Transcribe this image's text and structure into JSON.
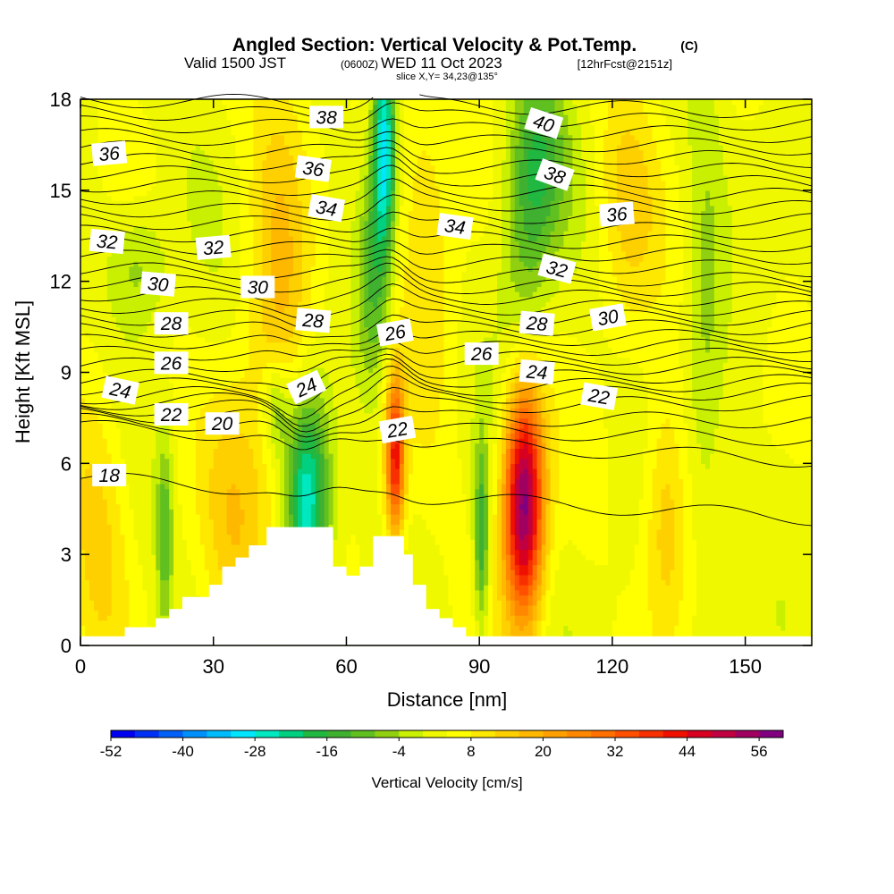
{
  "title": "Angled Section: Vertical Velocity & Pot.Temp.",
  "title_tag": "(C)",
  "subtitle_pre": "Valid 1500 JST",
  "subtitle_utc": "(0600Z)",
  "subtitle_date": "WED 11 Oct 2023",
  "subtitle_fcst": "[12hrFcst@2151z]",
  "slice_info": "slice X,Y= 34,23@135°",
  "colorbar": {
    "title": "Vertical Velocity [cm/s]",
    "tick_labels": [
      "-52",
      "-40",
      "-28",
      "-16",
      "-4",
      "8",
      "20",
      "32",
      "44",
      "56"
    ],
    "min": -52,
    "max": 56,
    "step": 4,
    "colors": [
      "#0000f0",
      "#0030f5",
      "#0060f8",
      "#0090fb",
      "#00bcfd",
      "#00e6ff",
      "#00e8c0",
      "#00d080",
      "#20b840",
      "#40b030",
      "#60c020",
      "#90d010",
      "#c8f000",
      "#f0f800",
      "#ffff00",
      "#ffe800",
      "#ffd000",
      "#ffb800",
      "#ffa000",
      "#ff8800",
      "#ff7000",
      "#ff5000",
      "#f83000",
      "#f01000",
      "#d80020",
      "#c00040",
      "#a00060",
      "#800080"
    ]
  },
  "chart_data": {
    "type": "heatmap",
    "title": "Angled Section: Vertical Velocity & Pot.Temp.",
    "xlabel": "Distance [nm]",
    "ylabel": "Height [Kft MSL]",
    "xlim": [
      0,
      165
    ],
    "ylim": [
      0,
      18
    ],
    "x_ticks": [
      0,
      30,
      60,
      90,
      120,
      150
    ],
    "y_ticks": [
      0,
      3,
      6,
      9,
      12,
      15,
      18
    ],
    "fill_variable": "Vertical Velocity [cm/s]",
    "contour_variable": "Potential Temperature [C]",
    "updrafts": [
      {
        "x": 100,
        "y": 4.7,
        "peak": 56,
        "sx": 3.2,
        "sy": 2.7
      },
      {
        "x": 71,
        "y": 6.2,
        "peak": 38,
        "sx": 1.5,
        "sy": 1.9
      },
      {
        "x": 45,
        "y": 11.5,
        "peak": 12,
        "sx": 5,
        "sy": 6
      },
      {
        "x": 132,
        "y": 4.2,
        "peak": 12,
        "sx": 3.5,
        "sy": 3
      },
      {
        "x": 123,
        "y": 14.5,
        "peak": 10,
        "sx": 5,
        "sy": 3
      },
      {
        "x": 4,
        "y": 4.5,
        "peak": 10,
        "sx": 5,
        "sy": 3.5
      },
      {
        "x": 35,
        "y": 4,
        "peak": 12,
        "sx": 5,
        "sy": 3
      },
      {
        "x": 78,
        "y": 14,
        "peak": 8,
        "sx": 5,
        "sy": 5
      }
    ],
    "downdrafts": [
      {
        "x": 51,
        "y": 4.8,
        "peak": -32,
        "sx": 3.5,
        "sy": 2.5
      },
      {
        "x": 44,
        "y": 7.8,
        "peak": -14,
        "sx": 2.2,
        "sy": 1.2
      },
      {
        "x": 68.5,
        "y": 16.5,
        "peak": -34,
        "sx": 1.8,
        "sy": 2.5
      },
      {
        "x": 66,
        "y": 12,
        "peak": -14,
        "sx": 2.5,
        "sy": 2.5
      },
      {
        "x": 103,
        "y": 16,
        "peak": -18,
        "sx": 4.5,
        "sy": 2.2
      },
      {
        "x": 90.5,
        "y": 3.5,
        "peak": -20,
        "sx": 1.2,
        "sy": 2.2
      },
      {
        "x": 19,
        "y": 3.8,
        "peak": -14,
        "sx": 1.3,
        "sy": 2.2
      },
      {
        "x": 100,
        "y": 12.5,
        "peak": -10,
        "sx": 4,
        "sy": 2.5
      },
      {
        "x": 13,
        "y": 12.5,
        "peak": -10,
        "sx": 5,
        "sy": 1.5
      },
      {
        "x": 141,
        "y": 11.5,
        "peak": -7,
        "sx": 3,
        "sy": 6
      }
    ],
    "terrain": {
      "x": [
        0,
        10,
        10,
        17,
        17,
        20,
        20,
        23,
        23,
        29,
        29,
        32,
        32,
        35,
        35,
        38,
        38,
        42,
        42,
        57,
        57,
        60,
        60,
        63,
        63,
        66,
        66,
        73,
        73,
        75,
        75,
        78,
        78,
        81,
        81,
        84,
        84,
        87,
        87,
        90,
        90,
        165
      ],
      "height": [
        0.3,
        0.3,
        0.6,
        0.6,
        0.9,
        0.9,
        1.2,
        1.2,
        1.6,
        1.6,
        2.0,
        2.0,
        2.6,
        2.6,
        2.9,
        2.9,
        3.3,
        3.3,
        3.9,
        3.9,
        2.6,
        2.6,
        2.3,
        2.3,
        2.6,
        2.6,
        3.6,
        3.6,
        3.0,
        3.0,
        2.0,
        2.0,
        1.2,
        1.2,
        0.9,
        0.9,
        0.6,
        0.6,
        0.3,
        0.3,
        0.3,
        0.3
      ]
    },
    "isentropes_left_heights": [
      5.5,
      7.2,
      7.4,
      7.6,
      7.8,
      8.0,
      8.2,
      8.5,
      8.8,
      9.2,
      9.6,
      10.0,
      10.4,
      10.8,
      11.2,
      11.6,
      12.0,
      12.4,
      12.8,
      13.2,
      13.6,
      14.0,
      14.4,
      14.8,
      15.2,
      15.6,
      16.0,
      16.4,
      16.8,
      17.2,
      17.6,
      18.0
    ],
    "isentropes_right_heights": [
      4.2,
      6.1,
      6.8,
      7.4,
      8.0,
      8.4,
      8.7,
      9.0,
      9.3,
      9.6,
      9.9,
      10.2,
      10.5,
      10.8,
      11.1,
      11.4,
      11.7,
      12.0,
      12.4,
      12.8,
      13.2,
      13.6,
      14.0,
      14.4,
      14.8,
      15.2,
      15.6,
      16.0,
      16.4,
      16.8,
      17.2,
      17.6
    ],
    "contour_labels": [
      {
        "text": "18",
        "x": 6.5,
        "y": 5.6,
        "angle": 0
      },
      {
        "text": "20",
        "x": 32,
        "y": 7.3,
        "angle": 0
      },
      {
        "text": "22",
        "x": 20.5,
        "y": 7.6,
        "angle": 0
      },
      {
        "text": "24",
        "x": 9,
        "y": 8.4,
        "angle": 12
      },
      {
        "text": "26",
        "x": 20.5,
        "y": 9.3,
        "angle": 0
      },
      {
        "text": "28",
        "x": 20.5,
        "y": 10.6,
        "angle": 0
      },
      {
        "text": "30",
        "x": 17.5,
        "y": 11.9,
        "angle": 5
      },
      {
        "text": "32",
        "x": 6,
        "y": 13.3,
        "angle": 5
      },
      {
        "text": "36",
        "x": 6.5,
        "y": 16.2,
        "angle": -5
      },
      {
        "text": "32",
        "x": 30,
        "y": 13.1,
        "angle": -5
      },
      {
        "text": "30",
        "x": 40,
        "y": 11.8,
        "angle": 0
      },
      {
        "text": "28",
        "x": 52.5,
        "y": 10.7,
        "angle": 5
      },
      {
        "text": "24",
        "x": 51,
        "y": 8.5,
        "angle": -25
      },
      {
        "text": "34",
        "x": 55.5,
        "y": 14.4,
        "angle": 10
      },
      {
        "text": "36",
        "x": 52.5,
        "y": 15.7,
        "angle": 8
      },
      {
        "text": "38",
        "x": 55.5,
        "y": 17.4,
        "angle": 0
      },
      {
        "text": "26",
        "x": 71,
        "y": 10.3,
        "angle": -10
      },
      {
        "text": "22",
        "x": 71.5,
        "y": 7.1,
        "angle": -10
      },
      {
        "text": "34",
        "x": 84.5,
        "y": 13.8,
        "angle": 8
      },
      {
        "text": "26",
        "x": 90.5,
        "y": 9.6,
        "angle": 0
      },
      {
        "text": "24",
        "x": 103,
        "y": 9.0,
        "angle": 5
      },
      {
        "text": "28",
        "x": 103,
        "y": 10.6,
        "angle": 5
      },
      {
        "text": "32",
        "x": 107.5,
        "y": 12.4,
        "angle": 15
      },
      {
        "text": "38",
        "x": 107,
        "y": 15.5,
        "angle": 20
      },
      {
        "text": "40",
        "x": 104.5,
        "y": 17.2,
        "angle": 18
      },
      {
        "text": "36",
        "x": 121,
        "y": 14.2,
        "angle": -5
      },
      {
        "text": "30",
        "x": 119,
        "y": 10.8,
        "angle": -10
      },
      {
        "text": "22",
        "x": 117,
        "y": 8.2,
        "angle": 10
      }
    ]
  }
}
